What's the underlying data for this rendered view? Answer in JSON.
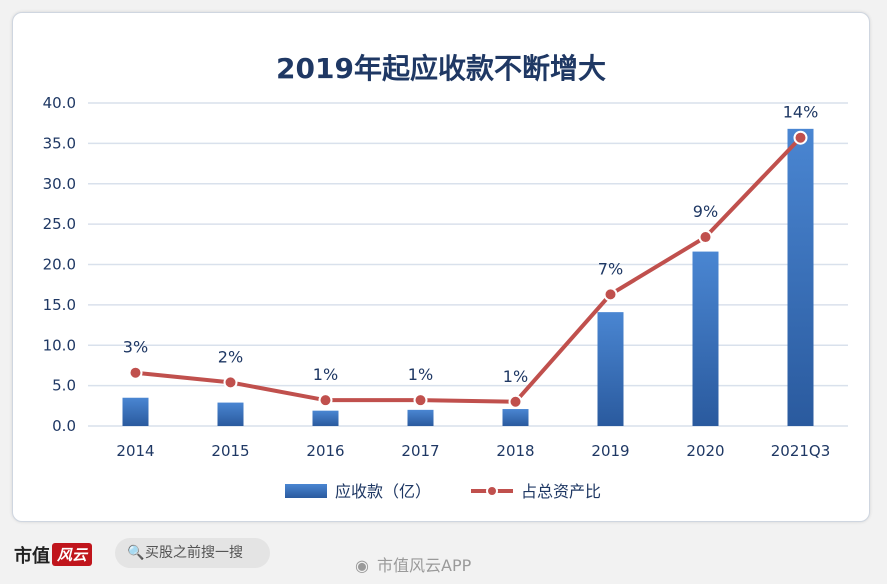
{
  "title": "2019年起应收款不断增大",
  "chart_data": {
    "type": "bar+line",
    "title": "2019年起应收款不断增大",
    "categories": [
      "2014",
      "2015",
      "2016",
      "2017",
      "2018",
      "2019",
      "2020",
      "2021Q3"
    ],
    "series": [
      {
        "name": "应收款（亿）",
        "type": "bar",
        "values": [
          3.5,
          2.9,
          1.9,
          2.0,
          2.1,
          14.1,
          21.6,
          36.8
        ]
      },
      {
        "name": "占总资产比",
        "type": "line",
        "values": [
          6.6,
          5.4,
          3.2,
          3.2,
          3.0,
          16.3,
          23.4,
          35.7
        ],
        "labels": [
          "3%",
          "2%",
          "1%",
          "1%",
          "1%",
          "7%",
          "9%",
          "14%"
        ]
      }
    ],
    "ylim": [
      0,
      40
    ],
    "yticks": [
      "0.0",
      "5.0",
      "10.0",
      "15.0",
      "20.0",
      "25.0",
      "30.0",
      "35.0",
      "40.0"
    ],
    "grid": true,
    "legend_position": "bottom"
  },
  "colors": {
    "bar_top": "#4a86d2",
    "bar_bottom": "#2a5a9e",
    "line": "#c0504d",
    "marker_fill": "#c0504d",
    "marker_stroke": "#ffffff",
    "grid": "#d9e1ec",
    "text": "#1f3864"
  },
  "footer": {
    "brand": "市值",
    "brand_logo": "风云",
    "search_text": "买股之前搜一搜",
    "weibo_text": "市值风云APP"
  }
}
